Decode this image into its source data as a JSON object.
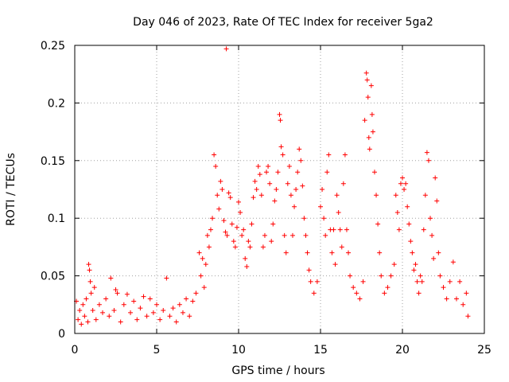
{
  "chart_data": {
    "type": "scatter",
    "title": "Day 046 of 2023, Rate Of TEC Index for receiver 5ga2",
    "xlabel": "GPS time / hours",
    "ylabel": "ROTI / TECUs",
    "xlim": [
      0,
      25
    ],
    "ylim": [
      0,
      0.25
    ],
    "xticks": [
      0,
      5,
      10,
      15,
      20,
      25
    ],
    "xtick_labels": [
      "0",
      "5",
      "10",
      "15",
      "20",
      "25"
    ],
    "yticks": [
      0,
      0.05,
      0.1,
      0.15,
      0.2,
      0.25
    ],
    "ytick_labels": [
      "0",
      "0.05",
      "0.1",
      "0.15",
      "0.2",
      "0.25"
    ],
    "grid": true,
    "marker": "+",
    "series": [
      {
        "color": "#ff0000",
        "points": [
          [
            0.1,
            0.028
          ],
          [
            0.2,
            0.012
          ],
          [
            0.3,
            0.02
          ],
          [
            0.4,
            0.008
          ],
          [
            0.5,
            0.025
          ],
          [
            0.6,
            0.015
          ],
          [
            0.7,
            0.03
          ],
          [
            0.8,
            0.01
          ],
          [
            0.85,
            0.06
          ],
          [
            0.9,
            0.055
          ],
          [
            0.95,
            0.045
          ],
          [
            1.0,
            0.035
          ],
          [
            1.1,
            0.02
          ],
          [
            1.2,
            0.04
          ],
          [
            1.3,
            0.012
          ],
          [
            1.5,
            0.025
          ],
          [
            1.7,
            0.018
          ],
          [
            1.9,
            0.03
          ],
          [
            2.1,
            0.015
          ],
          [
            2.2,
            0.048
          ],
          [
            2.4,
            0.02
          ],
          [
            2.5,
            0.038
          ],
          [
            2.6,
            0.035
          ],
          [
            2.8,
            0.01
          ],
          [
            3.0,
            0.025
          ],
          [
            3.2,
            0.034
          ],
          [
            3.4,
            0.018
          ],
          [
            3.6,
            0.028
          ],
          [
            3.8,
            0.012
          ],
          [
            4.0,
            0.022
          ],
          [
            4.2,
            0.032
          ],
          [
            4.4,
            0.015
          ],
          [
            4.6,
            0.03
          ],
          [
            4.8,
            0.018
          ],
          [
            5.0,
            0.025
          ],
          [
            5.2,
            0.012
          ],
          [
            5.4,
            0.02
          ],
          [
            5.6,
            0.048
          ],
          [
            5.8,
            0.015
          ],
          [
            6.0,
            0.022
          ],
          [
            6.2,
            0.01
          ],
          [
            6.4,
            0.025
          ],
          [
            6.6,
            0.018
          ],
          [
            6.8,
            0.03
          ],
          [
            7.0,
            0.015
          ],
          [
            7.2,
            0.028
          ],
          [
            7.4,
            0.035
          ],
          [
            7.6,
            0.07
          ],
          [
            7.7,
            0.05
          ],
          [
            7.8,
            0.065
          ],
          [
            7.9,
            0.04
          ],
          [
            8.0,
            0.06
          ],
          [
            8.1,
            0.085
          ],
          [
            8.2,
            0.075
          ],
          [
            8.3,
            0.09
          ],
          [
            8.4,
            0.1
          ],
          [
            8.5,
            0.155
          ],
          [
            8.6,
            0.145
          ],
          [
            8.7,
            0.12
          ],
          [
            8.8,
            0.108
          ],
          [
            8.9,
            0.132
          ],
          [
            9.0,
            0.125
          ],
          [
            9.1,
            0.098
          ],
          [
            9.2,
            0.088
          ],
          [
            9.25,
            0.247
          ],
          [
            9.3,
            0.085
          ],
          [
            9.4,
            0.122
          ],
          [
            9.5,
            0.118
          ],
          [
            9.6,
            0.095
          ],
          [
            9.7,
            0.08
          ],
          [
            9.8,
            0.075
          ],
          [
            9.9,
            0.092
          ],
          [
            10.0,
            0.114
          ],
          [
            10.1,
            0.105
          ],
          [
            10.2,
            0.085
          ],
          [
            10.3,
            0.09
          ],
          [
            10.4,
            0.065
          ],
          [
            10.5,
            0.058
          ],
          [
            10.6,
            0.08
          ],
          [
            10.7,
            0.075
          ],
          [
            10.8,
            0.095
          ],
          [
            10.9,
            0.118
          ],
          [
            11.0,
            0.132
          ],
          [
            11.1,
            0.125
          ],
          [
            11.2,
            0.145
          ],
          [
            11.3,
            0.138
          ],
          [
            11.4,
            0.12
          ],
          [
            11.5,
            0.075
          ],
          [
            11.6,
            0.085
          ],
          [
            11.7,
            0.14
          ],
          [
            11.8,
            0.145
          ],
          [
            11.9,
            0.13
          ],
          [
            12.0,
            0.08
          ],
          [
            12.1,
            0.095
          ],
          [
            12.2,
            0.115
          ],
          [
            12.3,
            0.125
          ],
          [
            12.4,
            0.14
          ],
          [
            12.5,
            0.19
          ],
          [
            12.55,
            0.185
          ],
          [
            12.6,
            0.162
          ],
          [
            12.7,
            0.155
          ],
          [
            12.8,
            0.085
          ],
          [
            12.9,
            0.07
          ],
          [
            13.0,
            0.13
          ],
          [
            13.1,
            0.145
          ],
          [
            13.2,
            0.12
          ],
          [
            13.3,
            0.085
          ],
          [
            13.4,
            0.11
          ],
          [
            13.5,
            0.125
          ],
          [
            13.6,
            0.14
          ],
          [
            13.7,
            0.16
          ],
          [
            13.8,
            0.15
          ],
          [
            13.9,
            0.128
          ],
          [
            14.0,
            0.1
          ],
          [
            14.1,
            0.085
          ],
          [
            14.2,
            0.07
          ],
          [
            14.3,
            0.055
          ],
          [
            14.4,
            0.045
          ],
          [
            14.6,
            0.035
          ],
          [
            14.8,
            0.045
          ],
          [
            15.0,
            0.11
          ],
          [
            15.1,
            0.125
          ],
          [
            15.2,
            0.1
          ],
          [
            15.3,
            0.085
          ],
          [
            15.4,
            0.14
          ],
          [
            15.5,
            0.155
          ],
          [
            15.6,
            0.09
          ],
          [
            15.7,
            0.07
          ],
          [
            15.8,
            0.09
          ],
          [
            15.9,
            0.06
          ],
          [
            16.0,
            0.12
          ],
          [
            16.1,
            0.105
          ],
          [
            16.2,
            0.09
          ],
          [
            16.3,
            0.075
          ],
          [
            16.4,
            0.13
          ],
          [
            16.5,
            0.155
          ],
          [
            16.6,
            0.09
          ],
          [
            16.7,
            0.07
          ],
          [
            16.8,
            0.05
          ],
          [
            17.0,
            0.04
          ],
          [
            17.2,
            0.035
          ],
          [
            17.4,
            0.03
          ],
          [
            17.6,
            0.045
          ],
          [
            17.7,
            0.185
          ],
          [
            17.8,
            0.226
          ],
          [
            17.85,
            0.22
          ],
          [
            17.9,
            0.205
          ],
          [
            17.95,
            0.17
          ],
          [
            18.0,
            0.16
          ],
          [
            18.1,
            0.215
          ],
          [
            18.15,
            0.19
          ],
          [
            18.2,
            0.175
          ],
          [
            18.3,
            0.14
          ],
          [
            18.4,
            0.12
          ],
          [
            18.5,
            0.095
          ],
          [
            18.6,
            0.07
          ],
          [
            18.7,
            0.05
          ],
          [
            18.9,
            0.035
          ],
          [
            19.1,
            0.04
          ],
          [
            19.3,
            0.05
          ],
          [
            19.5,
            0.06
          ],
          [
            19.6,
            0.12
          ],
          [
            19.7,
            0.105
          ],
          [
            19.8,
            0.09
          ],
          [
            19.9,
            0.13
          ],
          [
            20.0,
            0.135
          ],
          [
            20.1,
            0.125
          ],
          [
            20.2,
            0.13
          ],
          [
            20.3,
            0.11
          ],
          [
            20.4,
            0.095
          ],
          [
            20.5,
            0.08
          ],
          [
            20.6,
            0.07
          ],
          [
            20.7,
            0.055
          ],
          [
            20.8,
            0.06
          ],
          [
            20.9,
            0.045
          ],
          [
            21.0,
            0.035
          ],
          [
            21.1,
            0.05
          ],
          [
            21.2,
            0.045
          ],
          [
            21.3,
            0.09
          ],
          [
            21.4,
            0.12
          ],
          [
            21.5,
            0.157
          ],
          [
            21.6,
            0.15
          ],
          [
            21.7,
            0.1
          ],
          [
            21.8,
            0.085
          ],
          [
            21.9,
            0.065
          ],
          [
            22.0,
            0.135
          ],
          [
            22.1,
            0.115
          ],
          [
            22.2,
            0.07
          ],
          [
            22.3,
            0.05
          ],
          [
            22.5,
            0.04
          ],
          [
            22.7,
            0.03
          ],
          [
            22.9,
            0.045
          ],
          [
            23.1,
            0.062
          ],
          [
            23.3,
            0.03
          ],
          [
            23.5,
            0.045
          ],
          [
            23.7,
            0.025
          ],
          [
            23.9,
            0.035
          ],
          [
            24.0,
            0.015
          ]
        ]
      }
    ]
  }
}
